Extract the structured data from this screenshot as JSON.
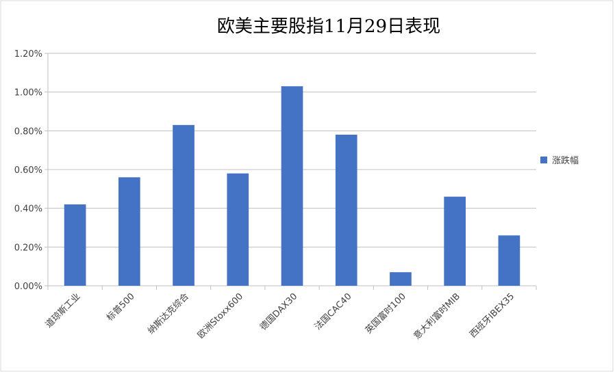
{
  "chart_data": {
    "type": "bar",
    "title": "欧美主要股指11月29日表现",
    "categories": [
      "道琼斯工业",
      "标普500",
      "纳斯达克综合",
      "欧洲Stoxx600",
      "德国DAX30",
      "法国CAC40",
      "英国富时100",
      "意大利富时MIB",
      "西班牙IBEX35"
    ],
    "series": [
      {
        "name": "涨跌幅",
        "color": "#4472c4",
        "values": [
          0.42,
          0.56,
          0.83,
          0.58,
          1.03,
          0.78,
          0.07,
          0.46,
          0.26
        ]
      }
    ],
    "ylim": [
      0,
      1.2
    ],
    "yticks": [
      {
        "value": 0,
        "label": "0.00%"
      },
      {
        "value": 0.2,
        "label": "0.20%"
      },
      {
        "value": 0.4,
        "label": "0.40%"
      },
      {
        "value": 0.6,
        "label": "0.60%"
      },
      {
        "value": 0.8,
        "label": "0.80%"
      },
      {
        "value": 1.0,
        "label": "1.00%"
      },
      {
        "value": 1.2,
        "label": "1.20%"
      }
    ],
    "grid": true,
    "legend": "right"
  }
}
